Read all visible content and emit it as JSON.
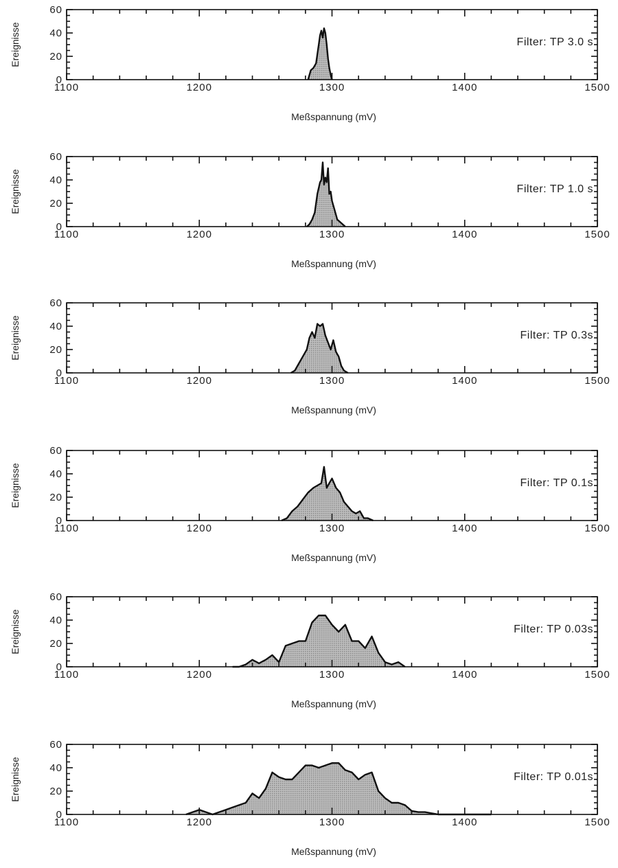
{
  "chart_data": [
    {
      "type": "area",
      "annotation": "Filter: TP 3.0 s",
      "xlabel": "Meßspannung (mV)",
      "ylabel": "Ereignisse",
      "xlim": [
        1100,
        1500
      ],
      "ylim": [
        0,
        60
      ],
      "xticks": [
        1100,
        1200,
        1300,
        1400,
        1500
      ],
      "yticks": [
        0,
        20,
        40,
        60
      ],
      "grid": false,
      "fill": "stippled grey",
      "x": [
        1282,
        1284,
        1286,
        1288,
        1290,
        1291,
        1292,
        1293,
        1294,
        1295,
        1296,
        1297,
        1298,
        1299,
        1300
      ],
      "y": [
        0,
        8,
        10,
        14,
        30,
        38,
        42,
        36,
        44,
        40,
        30,
        18,
        10,
        4,
        0
      ]
    },
    {
      "type": "area",
      "annotation": "Filter: TP 1.0 s",
      "xlabel": "Meßspannung (mV)",
      "ylabel": "Ereignisse",
      "xlim": [
        1100,
        1500
      ],
      "ylim": [
        0,
        60
      ],
      "xticks": [
        1100,
        1200,
        1300,
        1400,
        1500
      ],
      "yticks": [
        0,
        20,
        40,
        60
      ],
      "grid": false,
      "fill": "stippled grey",
      "x": [
        1281,
        1283,
        1285,
        1287,
        1289,
        1291,
        1292,
        1293,
        1294,
        1295,
        1296,
        1297,
        1298,
        1299,
        1300,
        1302,
        1304,
        1306,
        1308,
        1310
      ],
      "y": [
        0,
        2,
        6,
        12,
        28,
        38,
        40,
        55,
        36,
        42,
        38,
        50,
        28,
        30,
        22,
        14,
        6,
        4,
        2,
        0
      ]
    },
    {
      "type": "area",
      "annotation": "Filter: TP 0.3s",
      "xlabel": "Meßspannung (mV)",
      "ylabel": "Ereignisse",
      "xlim": [
        1100,
        1500
      ],
      "ylim": [
        0,
        60
      ],
      "xticks": [
        1100,
        1200,
        1300,
        1400,
        1500
      ],
      "yticks": [
        0,
        20,
        40,
        60
      ],
      "grid": false,
      "fill": "stippled grey",
      "x": [
        1269,
        1272,
        1275,
        1278,
        1281,
        1283,
        1285,
        1287,
        1289,
        1291,
        1293,
        1295,
        1297,
        1299,
        1301,
        1303,
        1305,
        1307,
        1309,
        1312
      ],
      "y": [
        0,
        2,
        8,
        14,
        20,
        30,
        35,
        30,
        42,
        40,
        42,
        32,
        26,
        20,
        28,
        18,
        14,
        6,
        2,
        0
      ]
    },
    {
      "type": "area",
      "annotation": "Filter: TP 0.1s",
      "xlabel": "Meßspannung (mV)",
      "ylabel": "Ereignisse",
      "xlim": [
        1100,
        1500
      ],
      "ylim": [
        0,
        60
      ],
      "xticks": [
        1100,
        1200,
        1300,
        1400,
        1500
      ],
      "yticks": [
        0,
        20,
        40,
        60
      ],
      "grid": false,
      "fill": "stippled grey",
      "x": [
        1262,
        1266,
        1270,
        1274,
        1278,
        1282,
        1286,
        1289,
        1292,
        1294,
        1296,
        1298,
        1300,
        1303,
        1306,
        1309,
        1312,
        1315,
        1318,
        1321,
        1324,
        1327,
        1331
      ],
      "y": [
        0,
        2,
        8,
        12,
        18,
        24,
        28,
        30,
        32,
        46,
        28,
        32,
        36,
        28,
        24,
        16,
        12,
        8,
        6,
        8,
        2,
        2,
        0
      ]
    },
    {
      "type": "area",
      "annotation": "Filter: TP 0.03s",
      "xlabel": "Meßspannung (mV)",
      "ylabel": "Ereignisse",
      "xlim": [
        1100,
        1500
      ],
      "ylim": [
        0,
        60
      ],
      "xticks": [
        1100,
        1200,
        1300,
        1400,
        1500
      ],
      "yticks": [
        0,
        20,
        40,
        60
      ],
      "grid": false,
      "fill": "stippled grey",
      "x": [
        1225,
        1230,
        1235,
        1240,
        1245,
        1250,
        1255,
        1260,
        1265,
        1270,
        1275,
        1280,
        1285,
        1290,
        1295,
        1300,
        1305,
        1310,
        1315,
        1320,
        1325,
        1330,
        1335,
        1340,
        1345,
        1350,
        1355
      ],
      "y": [
        0,
        0,
        2,
        6,
        3,
        6,
        10,
        4,
        18,
        20,
        22,
        22,
        38,
        44,
        44,
        36,
        30,
        36,
        22,
        22,
        16,
        26,
        12,
        4,
        2,
        4,
        0
      ]
    },
    {
      "type": "area",
      "annotation": "Filter: TP 0.01s",
      "xlabel": "Meßspannung (mV)",
      "ylabel": "Ereignisse",
      "xlim": [
        1100,
        1500
      ],
      "ylim": [
        0,
        60
      ],
      "xticks": [
        1100,
        1200,
        1300,
        1400,
        1500
      ],
      "yticks": [
        0,
        20,
        40,
        60
      ],
      "grid": false,
      "fill": "stippled grey",
      "x": [
        1190,
        1195,
        1200,
        1205,
        1210,
        1215,
        1220,
        1225,
        1230,
        1235,
        1240,
        1245,
        1250,
        1255,
        1260,
        1265,
        1270,
        1275,
        1280,
        1285,
        1290,
        1295,
        1300,
        1305,
        1310,
        1315,
        1320,
        1325,
        1330,
        1335,
        1340,
        1345,
        1350,
        1355,
        1360,
        1365,
        1370,
        1375,
        1380,
        1385,
        1390,
        1400,
        1420
      ],
      "y": [
        0,
        2,
        4,
        2,
        0,
        2,
        4,
        6,
        8,
        10,
        18,
        14,
        22,
        36,
        32,
        30,
        30,
        36,
        42,
        42,
        40,
        42,
        44,
        44,
        38,
        36,
        30,
        34,
        36,
        20,
        14,
        10,
        10,
        8,
        3,
        2,
        2,
        1,
        0,
        0,
        0,
        0,
        0
      ]
    }
  ]
}
